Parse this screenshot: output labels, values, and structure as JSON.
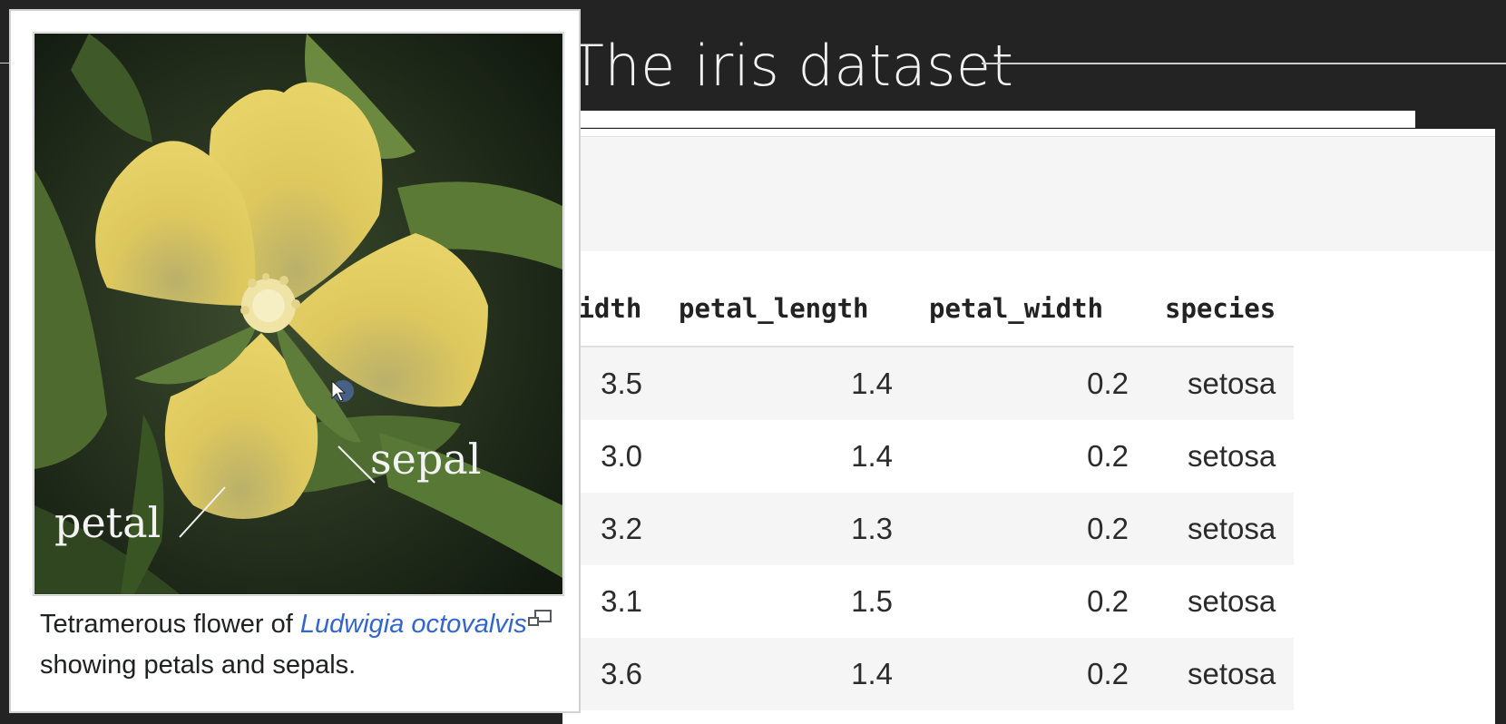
{
  "slide": {
    "title": "The iris dataset"
  },
  "table": {
    "headers": [
      "width",
      "petal_length",
      "petal_width",
      "species"
    ],
    "rows": [
      [
        "3.5",
        "1.4",
        "0.2",
        "setosa"
      ],
      [
        "3.0",
        "1.4",
        "0.2",
        "setosa"
      ],
      [
        "3.2",
        "1.3",
        "0.2",
        "setosa"
      ],
      [
        "3.1",
        "1.5",
        "0.2",
        "setosa"
      ],
      [
        "3.6",
        "1.4",
        "0.2",
        "setosa"
      ]
    ]
  },
  "popup": {
    "image_labels": {
      "petal": "petal",
      "sepal": "sepal"
    },
    "caption": {
      "prefix": "Tetramerous flower of ",
      "taxon": "Ludwigia octovalvis",
      "suffix": " showing petals and sepals."
    },
    "enlarge_icon": "enlarge-icon",
    "link_color": "#3366cc"
  },
  "colors": {
    "background": "#232323",
    "title": "#f2f2f2",
    "row_stripe": "#f5f5f5"
  }
}
